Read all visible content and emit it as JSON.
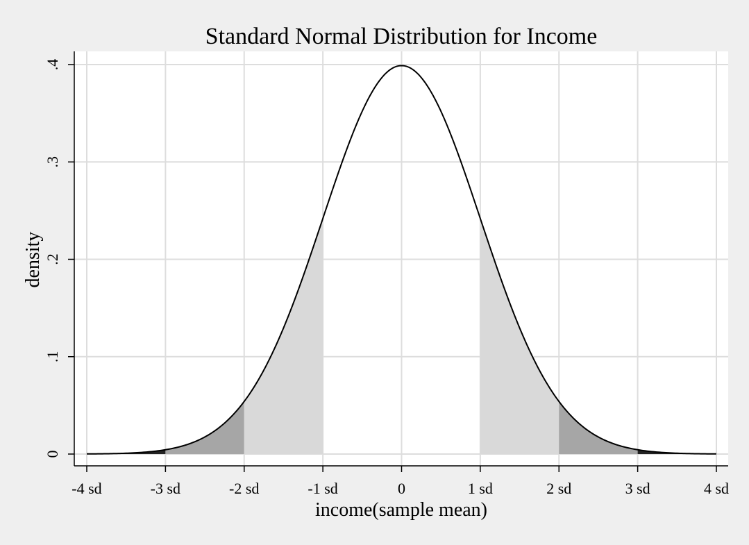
{
  "chart_data": {
    "type": "area",
    "title": "Standard Normal Distribution for Income",
    "xlabel": "income(sample mean)",
    "ylabel": "density",
    "x_range": [
      -4,
      4
    ],
    "ylim": [
      0,
      0.4
    ],
    "x_ticks": [
      {
        "value": -4,
        "label": "-4 sd"
      },
      {
        "value": -3,
        "label": "-3 sd"
      },
      {
        "value": -2,
        "label": "-2 sd"
      },
      {
        "value": -1,
        "label": "-1 sd"
      },
      {
        "value": 0,
        "label": "0"
      },
      {
        "value": 1,
        "label": "1 sd"
      },
      {
        "value": 2,
        "label": "2 sd"
      },
      {
        "value": 3,
        "label": "3 sd"
      },
      {
        "value": 4,
        "label": "4 sd"
      }
    ],
    "y_ticks": [
      {
        "value": 0,
        "label": "0"
      },
      {
        "value": 0.1,
        "label": ".1"
      },
      {
        "value": 0.2,
        "label": ".2"
      },
      {
        "value": 0.3,
        "label": ".3"
      },
      {
        "value": 0.4,
        "label": ".4"
      }
    ],
    "grid": true,
    "curve": {
      "function": "standard normal density",
      "mean": 0,
      "sd": 1,
      "peak_density": 0.399,
      "color": "#000000"
    },
    "shaded_regions": [
      {
        "from": -4,
        "to": -3,
        "color": "#222222"
      },
      {
        "from": -3,
        "to": -2,
        "color": "#a6a6a6"
      },
      {
        "from": -2,
        "to": -1,
        "color": "#d9d9d9"
      },
      {
        "from": 1,
        "to": 2,
        "color": "#d9d9d9"
      },
      {
        "from": 2,
        "to": 3,
        "color": "#a6a6a6"
      },
      {
        "from": 3,
        "to": 4,
        "color": "#222222"
      }
    ],
    "colors": {
      "page_background": "#efefef",
      "plot_background": "#ffffff",
      "grid": "#dddddd"
    }
  }
}
